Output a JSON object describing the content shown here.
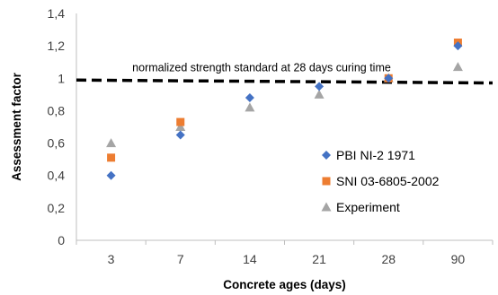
{
  "chart_data": {
    "type": "scatter",
    "title": "",
    "xlabel": "Concrete ages (days)",
    "ylabel": "Assessment factor",
    "categories": [
      "3",
      "7",
      "14",
      "21",
      "28",
      "90"
    ],
    "ylim": [
      0,
      1.4
    ],
    "yticks": [
      "0",
      "0,2",
      "0,4",
      "0,6",
      "0,8",
      "1",
      "1,2",
      "1,4"
    ],
    "grid": false,
    "legend_position": "right",
    "series": [
      {
        "name": "PBI NI-2 1971",
        "marker": "diamond",
        "color": "#4472C4",
        "values": [
          0.4,
          0.65,
          0.88,
          0.95,
          1.0,
          1.2
        ]
      },
      {
        "name": "SNI 03-6805-2002",
        "marker": "square",
        "color": "#ED7D31",
        "values": [
          0.51,
          0.73,
          null,
          null,
          1.0,
          1.22
        ]
      },
      {
        "name": "Experiment",
        "marker": "triangle",
        "color": "#A5A5A5",
        "values": [
          0.6,
          0.7,
          0.82,
          0.9,
          1.0,
          1.07
        ]
      }
    ],
    "reference_line": {
      "value": 1.0,
      "style": "dashed",
      "color": "#000000",
      "label": "normalized strength standard at 28 days curing time"
    }
  }
}
